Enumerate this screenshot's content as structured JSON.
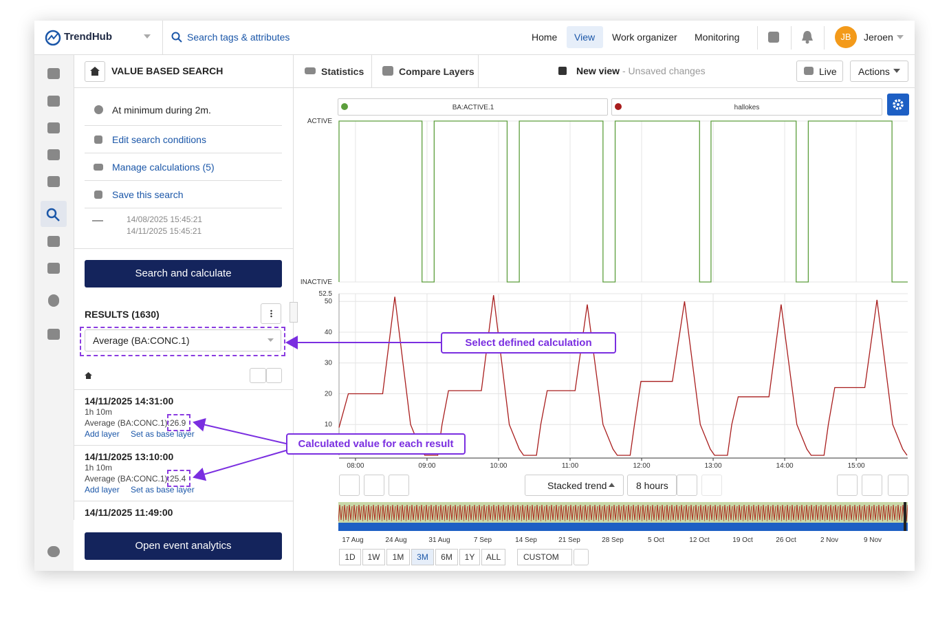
{
  "topbar": {
    "brand": "TrendHub",
    "search": "Search tags & attributes",
    "nav": [
      "Home",
      "View",
      "Work organizer",
      "Monitoring"
    ],
    "user_initials": "JB",
    "user": "Jeroen"
  },
  "panel": {
    "title": "VALUE BASED SEARCH",
    "condition": "At minimum during 2m.",
    "actions": [
      "Edit search conditions",
      "Manage calculations (5)",
      "Save this search"
    ],
    "range_start": "14/08/2025 15:45:21",
    "range_end": "14/11/2025 15:45:21",
    "search_button": "Search and calculate",
    "results_label": "RESULTS (1630)",
    "calculation_select": "Average (BA:CONC.1)",
    "results": [
      {
        "time": "14/11/2025 14:31:00",
        "duration": "1h 10m",
        "calc_label": "Average (BA:CONC.1):",
        "calc_value": "26.9",
        "add": "Add layer",
        "base": "Set as base layer"
      },
      {
        "time": "14/11/2025 13:10:00",
        "duration": "1h 10m",
        "calc_label": "Average (BA:CONC.1):",
        "calc_value": "25.4",
        "add": "Add layer",
        "base": "Set as base layer"
      },
      {
        "time": "14/11/2025 11:49:00"
      }
    ],
    "open_button": "Open event analytics"
  },
  "toolbar": {
    "statistics": "Statistics",
    "compare": "Compare Layers",
    "view_name": "New view",
    "view_status": "- Unsaved changes",
    "live": "Live",
    "actions": "Actions"
  },
  "callouts": [
    "Select defined calculation",
    "Calculated value for each result"
  ],
  "bottom": {
    "mode": "Stacked trend",
    "span": "8 hours",
    "navigator_dates": [
      "17 Aug",
      "24 Aug",
      "31 Aug",
      "7 Sep",
      "14 Sep",
      "21 Sep",
      "28 Sep",
      "5 Oct",
      "12 Oct",
      "19 Oct",
      "26 Oct",
      "2 Nov",
      "9 Nov"
    ],
    "ranges": [
      "1D",
      "1W",
      "1M",
      "3M",
      "6M",
      "1Y",
      "ALL"
    ],
    "selected_range": "3M",
    "custom": "CUSTOM"
  },
  "chart_data": [
    {
      "type": "line",
      "legend": "BA:ACTIVE.1",
      "color": "#5c9e3c",
      "step": true,
      "xlim": [
        7.77,
        15.72
      ],
      "ylim": [
        0,
        1
      ],
      "yticks": [
        {
          "value": 0,
          "label": "INACTIVE"
        },
        {
          "value": 1,
          "label": "ACTIVE"
        }
      ],
      "x": [
        7.77,
        7.77,
        8.93,
        8.93,
        9.1,
        9.1,
        10.12,
        10.12,
        10.29,
        10.29,
        11.46,
        11.46,
        11.63,
        11.63,
        12.81,
        12.81,
        12.97,
        12.97,
        14.16,
        14.16,
        14.33,
        14.33,
        15.5,
        15.5,
        15.72
      ],
      "values": [
        0,
        1,
        1,
        0,
        0,
        1,
        1,
        0,
        0,
        1,
        1,
        0,
        0,
        1,
        1,
        0,
        0,
        1,
        1,
        0,
        0,
        1,
        1,
        0,
        0
      ]
    },
    {
      "type": "line",
      "legend": "hallokes",
      "color": "#a81c1c",
      "xlim": [
        7.77,
        15.72
      ],
      "ylim": [
        0,
        52.5
      ],
      "yticks": [
        10,
        20,
        30,
        40,
        50,
        52.5
      ],
      "xticks": [
        {
          "value": 8,
          "label": "08:00"
        },
        {
          "value": 9,
          "label": "09:00"
        },
        {
          "value": 10,
          "label": "10:00"
        },
        {
          "value": 11,
          "label": "11:00"
        },
        {
          "value": 12,
          "label": "12:00"
        },
        {
          "value": 13,
          "label": "13:00"
        },
        {
          "value": 14,
          "label": "14:00"
        },
        {
          "value": 15,
          "label": "15:00"
        }
      ],
      "x": [
        7.77,
        7.9,
        8.38,
        8.55,
        8.77,
        8.91,
        8.97,
        9.15,
        9.21,
        9.3,
        9.76,
        9.93,
        10.15,
        10.29,
        10.35,
        10.53,
        10.59,
        10.68,
        11.07,
        11.24,
        11.46,
        11.6,
        11.66,
        11.84,
        11.9,
        11.99,
        12.43,
        12.6,
        12.82,
        12.96,
        13.02,
        13.2,
        13.26,
        13.35,
        13.78,
        13.95,
        14.17,
        14.31,
        14.37,
        14.55,
        14.61,
        14.7,
        15.12,
        15.29,
        15.51,
        15.65,
        15.71
      ],
      "values": [
        9,
        20,
        20,
        51.5,
        10,
        2,
        0,
        0,
        10,
        21,
        21,
        52,
        10,
        2,
        0,
        0,
        10,
        21,
        21,
        49,
        10,
        2,
        0,
        0,
        10,
        24,
        24,
        50,
        10,
        2,
        0,
        0,
        10,
        19,
        19,
        49,
        10,
        2,
        0,
        0,
        10,
        22,
        22,
        50.5,
        10,
        2,
        0
      ]
    }
  ]
}
